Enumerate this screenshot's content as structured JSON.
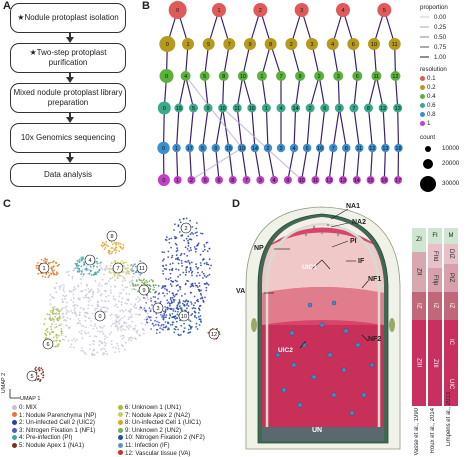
{
  "panels": {
    "a": "A",
    "b": "B",
    "c": "C",
    "d": "D"
  },
  "workflow": [
    {
      "label": "★Nodule protoplast isolation"
    },
    {
      "label": "★Two-step protoplast purification"
    },
    {
      "label": "Mixed nodule protoplast library preparation"
    },
    {
      "label": "10x Genomics sequencing"
    },
    {
      "label": "Data analysis"
    }
  ],
  "tree": {
    "level0": [
      "0",
      "1",
      "2",
      "3",
      "4",
      "5"
    ],
    "level1": [
      "0",
      "1",
      "5",
      "7",
      "9",
      "8",
      "2",
      "3",
      "4",
      "6",
      "10",
      "11"
    ],
    "level2": [
      "0",
      "4",
      "5",
      "8",
      "10",
      "1",
      "7",
      "9",
      "2",
      "3",
      "6",
      "11",
      "12"
    ],
    "level3": [
      "0",
      "15",
      "5",
      "9",
      "10",
      "11",
      "16",
      "1",
      "4",
      "14",
      "2",
      "6",
      "3",
      "7",
      "8",
      "12",
      "13"
    ],
    "level4": [
      "0",
      "1",
      "17",
      "5",
      "9",
      "15",
      "10",
      "14",
      "2",
      "3",
      "4",
      "6",
      "16",
      "7",
      "8",
      "11",
      "12",
      "13",
      "18"
    ],
    "level5": [
      "0",
      "1",
      "2",
      "5",
      "6",
      "8",
      "7",
      "3",
      "4",
      "9",
      "10",
      "11",
      "12",
      "13",
      "14",
      "15",
      "16",
      "17"
    ]
  },
  "tree_legend": {
    "proportion_title": "proportion",
    "proportion_values": [
      "0.00",
      "0.25",
      "0.50",
      "0.75",
      "1.00"
    ],
    "resolution_title": "resolution",
    "resolution_values": [
      "0.1",
      "0.2",
      "0.4",
      "0.6",
      "0.8",
      "1"
    ],
    "resolution_colors": [
      "#e05a5a",
      "#b59a1e",
      "#5ab23a",
      "#3aaa88",
      "#3a8fd0",
      "#c040c8"
    ],
    "count_title": "count",
    "count_values": [
      "10000",
      "20000",
      "30000"
    ]
  },
  "umap": {
    "ylabel": "UMAP 2",
    "xlabel": "UMAP 1",
    "cluster_labels": [
      "0",
      "1",
      "2",
      "3",
      "4",
      "5",
      "6",
      "7",
      "8",
      "9",
      "10",
      "11",
      "12"
    ]
  },
  "clusters": [
    {
      "id": "0",
      "name": "0: MIX",
      "color": "#c8c4d8"
    },
    {
      "id": "1",
      "name": "1: Nodule Parenchyma (NP)",
      "color": "#e07a30"
    },
    {
      "id": "2",
      "name": "2: Un-infected Cell 2 (UIC2)",
      "color": "#2a3ea8"
    },
    {
      "id": "3",
      "name": "3: Nitrogen Fixation 1 (NF1)",
      "color": "#4a58c8"
    },
    {
      "id": "4",
      "name": "4: Pre-infection (PI)",
      "color": "#40a8a0"
    },
    {
      "id": "5",
      "name": "5: Nodule Apex 1 (NA1)",
      "color": "#7a3020"
    },
    {
      "id": "6",
      "name": "6: Unknown 1 (UN1)",
      "color": "#a8c040"
    },
    {
      "id": "7",
      "name": "7: Nodule Apex 2 (NA2)",
      "color": "#c8d060"
    },
    {
      "id": "8",
      "name": "8: Un-infected Cell 1 (UIC1)",
      "color": "#e0a030"
    },
    {
      "id": "9",
      "name": "9: Unknown 2 (UN2)",
      "color": "#70b050"
    },
    {
      "id": "10",
      "name": "10: Nitrogen Fixation 2 (NF2)",
      "color": "#2050a0"
    },
    {
      "id": "11",
      "name": "11: Infection (IF)",
      "color": "#6890d0"
    },
    {
      "id": "12",
      "name": "12: Vascular tissue (VA)",
      "color": "#c83018"
    }
  ],
  "nodule": {
    "labels": {
      "na1": "NA1",
      "na2": "NA2",
      "np": "NP",
      "pi": "PI",
      "if": "IF",
      "va": "VA",
      "uic1": "UIC1",
      "nf1": "NF1",
      "nf2": "NF2",
      "uic2": "UIC2",
      "un": "UN"
    },
    "columns": [
      {
        "author": "Vasse et al., 1990",
        "zones": [
          "ZI",
          "ZII",
          "IZ",
          "ZIII"
        ]
      },
      {
        "author": "Roux et al., 2014",
        "zones": [
          "FI",
          "FIId",
          "FIIp",
          "IZ",
          "ZIII"
        ]
      },
      {
        "author": "Limpens et al., 2013",
        "zones": [
          "M",
          "DIZ",
          "PIZ",
          "IZ",
          "IC",
          "UIC"
        ]
      }
    ]
  }
}
